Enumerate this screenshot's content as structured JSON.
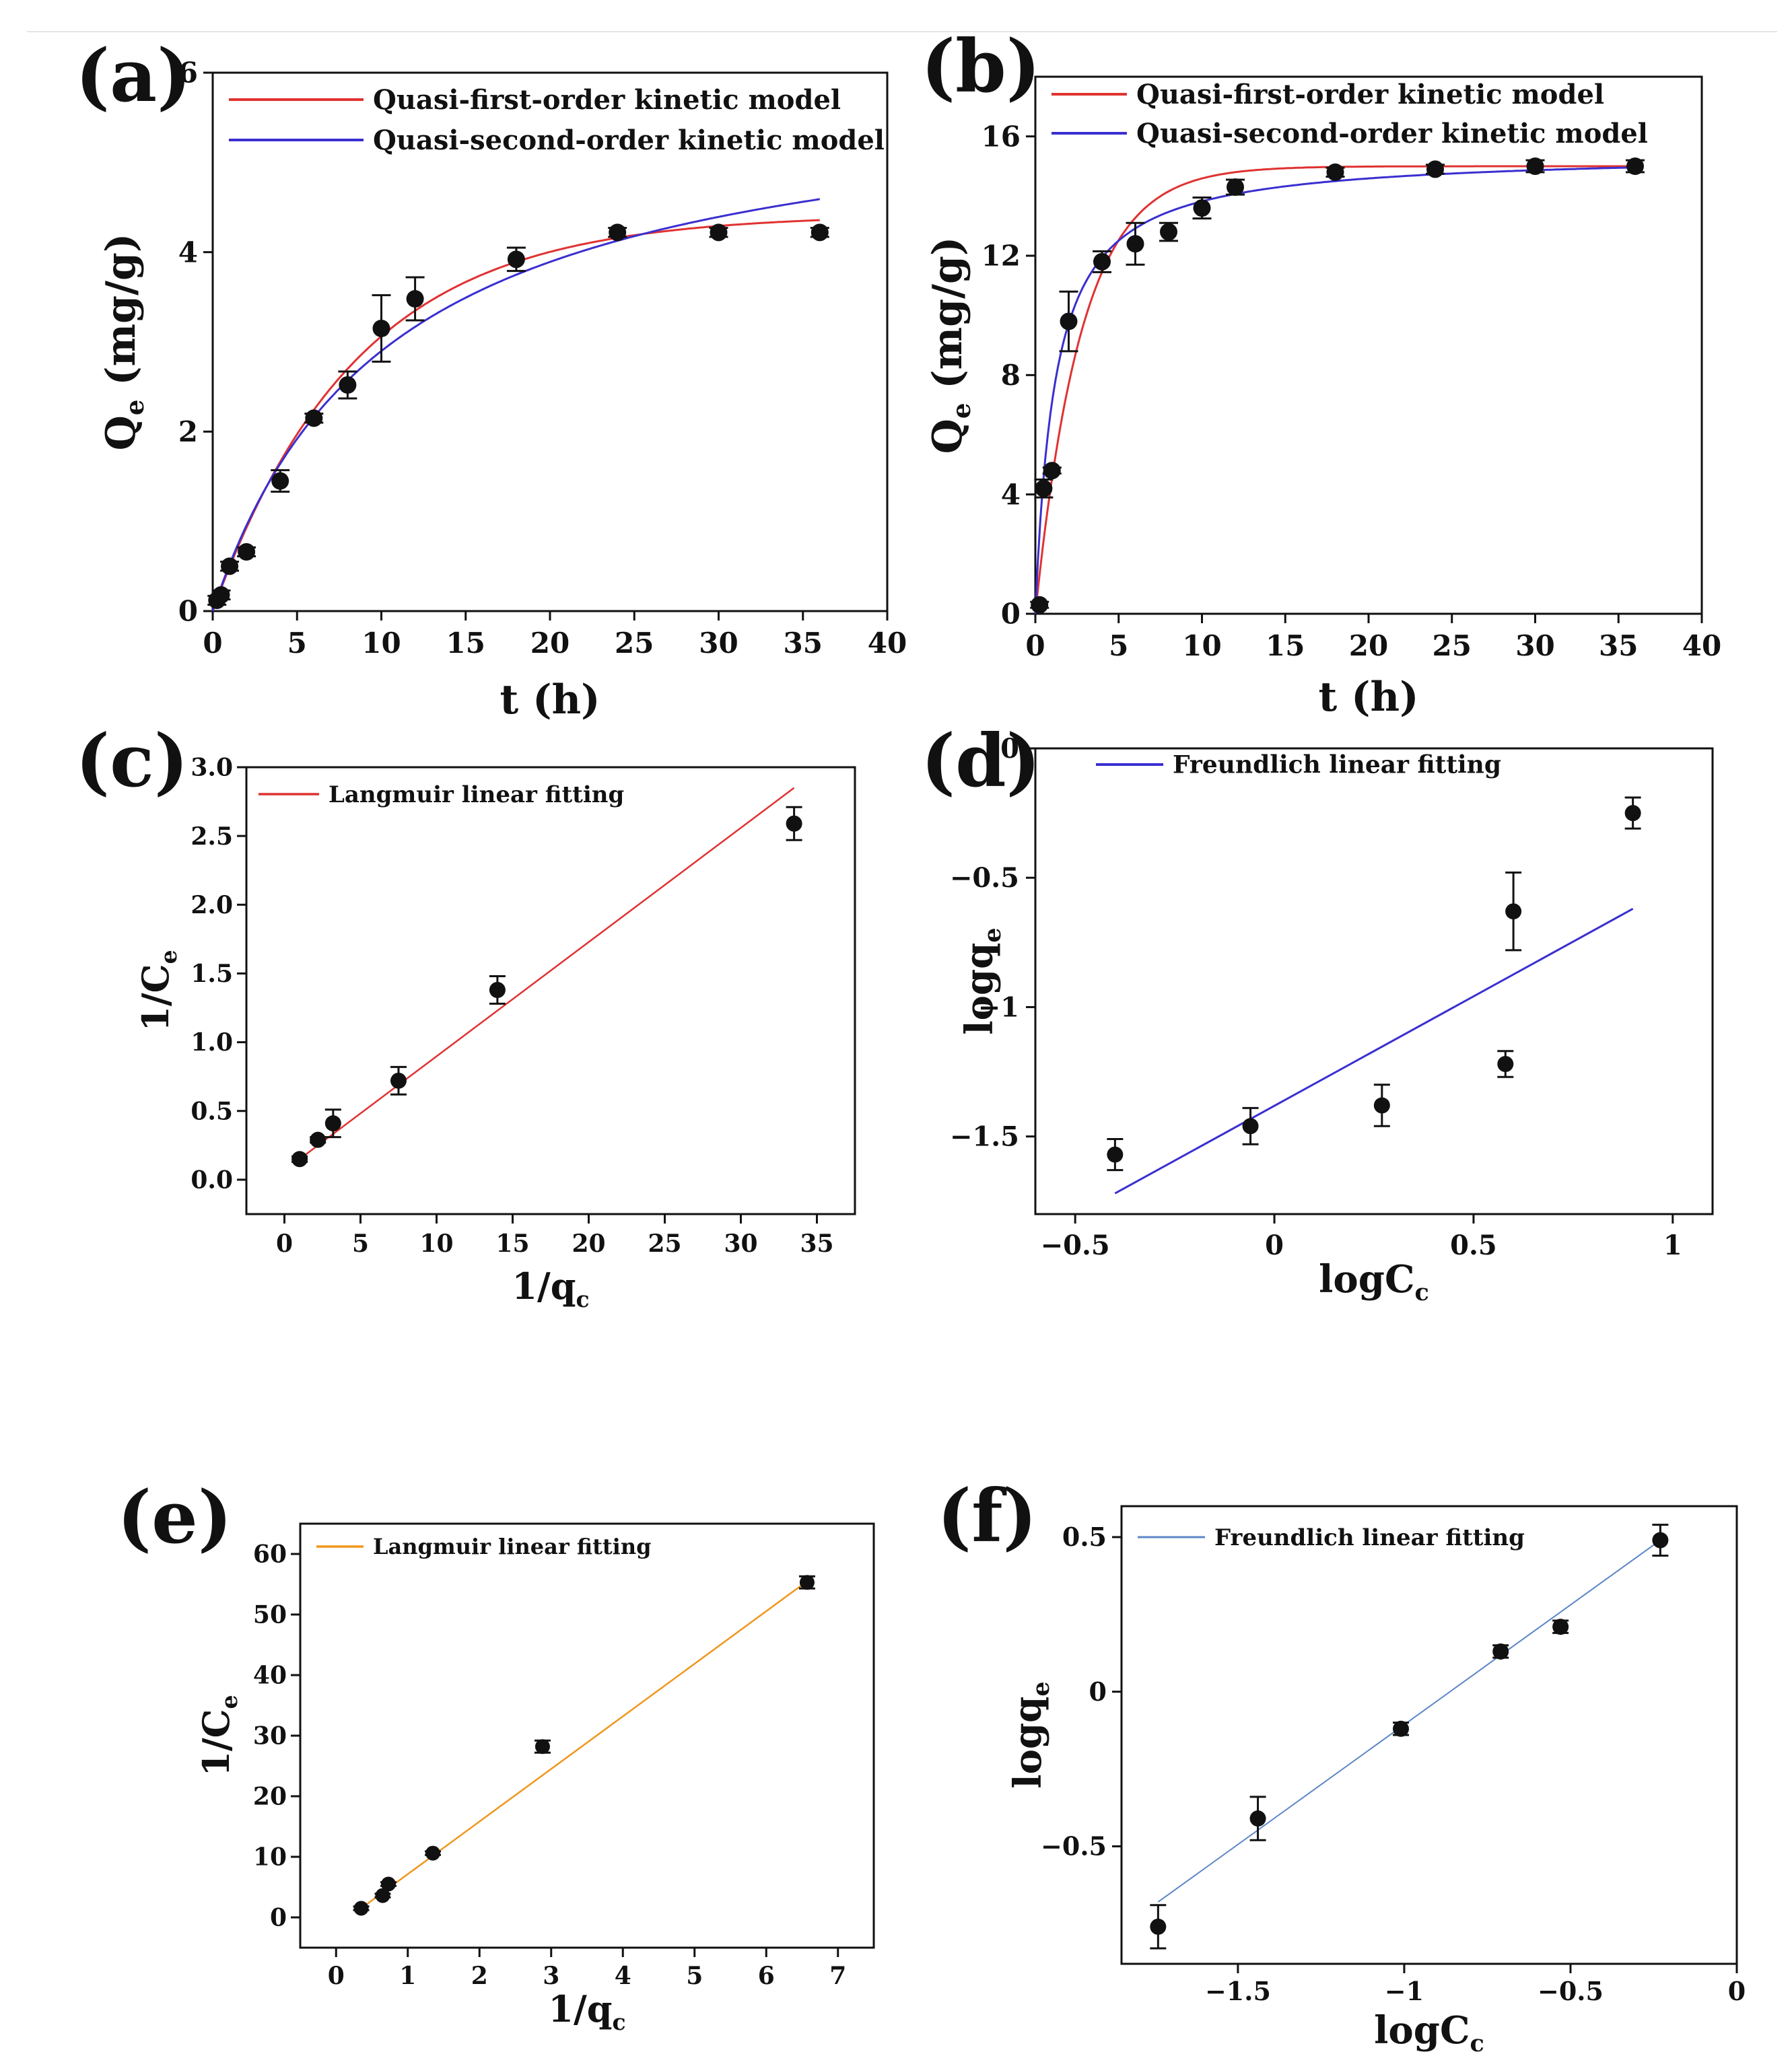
{
  "chart_data": [
    {
      "id": "a",
      "panel_label": "(a)",
      "type": "scatter",
      "xlabel": "t (h)",
      "ylabel": "Qe (mg/g)",
      "ylabel_main": "Q",
      "ylabel_sub": "e",
      "ylabel_tail": " (mg/g)",
      "xlim": [
        0,
        40
      ],
      "ylim": [
        0,
        6
      ],
      "xticks": [
        0,
        5,
        10,
        15,
        20,
        25,
        30,
        35,
        40
      ],
      "yticks": [
        0,
        2,
        4,
        6
      ],
      "x": [
        0.25,
        0.5,
        1,
        2,
        4,
        6,
        8,
        10,
        12,
        18,
        24,
        30,
        36
      ],
      "y": [
        0.12,
        0.18,
        0.5,
        0.66,
        1.45,
        2.15,
        2.52,
        3.15,
        3.48,
        3.92,
        4.22,
        4.22,
        4.22
      ],
      "err": [
        0.05,
        0.05,
        0.05,
        0.05,
        0.12,
        0.05,
        0.15,
        0.37,
        0.24,
        0.13,
        0.05,
        0.05,
        0.05
      ],
      "series": [
        {
          "name": "Quasi-first-order kinetic model",
          "model": "pfo",
          "qe": 4.42,
          "k": 0.118,
          "color": "#e03232"
        },
        {
          "name": "Quasi-second-order kinetic model",
          "model": "pso",
          "qe": 5.92,
          "k": 0.0162,
          "color": "#3a2fd0"
        }
      ],
      "legend_position": "top-left"
    },
    {
      "id": "b",
      "panel_label": "(b)",
      "type": "scatter",
      "xlabel": "t (h)",
      "ylabel": "Qe (mg/g)",
      "ylabel_main": "Q",
      "ylabel_sub": "e",
      "ylabel_tail": " (mg/g)",
      "xlim": [
        0,
        40
      ],
      "ylim": [
        0,
        18
      ],
      "xticks": [
        0,
        5,
        10,
        15,
        20,
        25,
        30,
        35,
        40
      ],
      "yticks": [
        0,
        4,
        8,
        12,
        16
      ],
      "x": [
        0.25,
        0.5,
        1,
        2,
        4,
        6,
        8,
        10,
        12,
        18,
        24,
        30,
        36
      ],
      "y": [
        0.3,
        4.2,
        4.8,
        9.8,
        11.8,
        12.4,
        12.8,
        13.6,
        14.3,
        14.8,
        14.9,
        15.0,
        15.0
      ],
      "err": [
        0.1,
        0.3,
        0.1,
        1.0,
        0.35,
        0.7,
        0.3,
        0.35,
        0.25,
        0.15,
        0.15,
        0.2,
        0.2
      ],
      "series": [
        {
          "name": "Quasi-first-order kinetic model",
          "model": "pfo",
          "qe": 15.0,
          "k": 0.36,
          "color": "#e03232"
        },
        {
          "name": "Quasi-second-order kinetic model",
          "model": "pso",
          "qe": 15.45,
          "k": 0.055,
          "color": "#3a2fd0"
        }
      ],
      "legend_position": "top-left"
    },
    {
      "id": "c",
      "panel_label": "(c)",
      "type": "scatter",
      "xlabel": "1/qc",
      "xlabel_main": "1/q",
      "xlabel_sub": "c",
      "ylabel": "1/Ce",
      "ylabel_main": "1/C",
      "ylabel_sub": "e",
      "ylabel_tail": "",
      "xlim": [
        -2.5,
        37.5
      ],
      "ylim": [
        -0.25,
        3.0
      ],
      "xticks": [
        0,
        5,
        10,
        15,
        20,
        25,
        30,
        35
      ],
      "xtick_labels": [
        "0",
        "5",
        "10",
        "15",
        "20",
        "25",
        "30",
        "35"
      ],
      "yticks": [
        0,
        0.5,
        1.0,
        1.5,
        2.0,
        2.5,
        3.0
      ],
      "ytick_labels": [
        "0.0",
        "0.5",
        "1.0",
        "1.5",
        "2.0",
        "2.5",
        "3.0"
      ],
      "x": [
        1.0,
        2.2,
        3.2,
        7.5,
        14.0,
        33.5
      ],
      "y": [
        0.15,
        0.29,
        0.41,
        0.72,
        1.38,
        2.59
      ],
      "err": [
        0.02,
        0.02,
        0.1,
        0.1,
        0.1,
        0.12
      ],
      "series": [
        {
          "name": "Langmuir linear fitting",
          "model": "line",
          "x": [
            1.0,
            33.5
          ],
          "y": [
            0.15,
            2.85
          ],
          "color": "#e03232"
        }
      ],
      "legend_position": "top-left"
    },
    {
      "id": "d",
      "panel_label": "(d)",
      "type": "scatter",
      "xlabel": "logCc",
      "xlabel_main": "logC",
      "xlabel_sub": "c",
      "ylabel": "logqe",
      "ylabel_main": "logq",
      "ylabel_sub": "e",
      "ylabel_tail": "",
      "xlim": [
        -0.6,
        1.1
      ],
      "ylim": [
        -1.8,
        0.0
      ],
      "xticks": [
        -0.5,
        0,
        0.5,
        1
      ],
      "xtick_labels": [
        "−0.5",
        "0",
        "0.5",
        "1"
      ],
      "yticks": [
        -1.5,
        -1,
        -0.5,
        0
      ],
      "ytick_labels": [
        "−1.5",
        "−1",
        "−0.5",
        "0"
      ],
      "x": [
        -0.4,
        -0.06,
        0.27,
        0.58,
        0.6,
        0.9
      ],
      "y": [
        -1.57,
        -1.46,
        -1.38,
        -1.22,
        -0.63,
        -0.25
      ],
      "err": [
        0.06,
        0.07,
        0.08,
        0.05,
        0.15,
        0.06
      ],
      "series": [
        {
          "name": "Freundlich linear fitting",
          "model": "line",
          "x": [
            -0.4,
            0.9
          ],
          "y": [
            -1.72,
            -0.62
          ],
          "color": "#3a2fd0"
        }
      ],
      "legend_position": "top-left"
    },
    {
      "id": "e",
      "panel_label": "(e)",
      "type": "scatter",
      "xlabel": "1/qc",
      "xlabel_main": "1/q",
      "xlabel_sub": "c",
      "ylabel": "1/Ce",
      "ylabel_main": "1/C",
      "ylabel_sub": "e",
      "ylabel_tail": "",
      "xlim": [
        -0.5,
        7.5
      ],
      "ylim": [
        -5,
        65
      ],
      "xticks": [
        0,
        1,
        2,
        3,
        4,
        5,
        6,
        7
      ],
      "xtick_labels": [
        "0",
        "1",
        "2",
        "3",
        "4",
        "5",
        "6",
        "7"
      ],
      "yticks": [
        0,
        10,
        20,
        30,
        40,
        50,
        60
      ],
      "ytick_labels": [
        "0",
        "10",
        "20",
        "30",
        "40",
        "50",
        "60"
      ],
      "x": [
        0.35,
        0.65,
        0.73,
        1.35,
        2.88,
        6.57
      ],
      "y": [
        1.5,
        3.6,
        5.5,
        10.6,
        28.2,
        55.3
      ],
      "err": [
        0.3,
        0.3,
        0.3,
        0.3,
        1.0,
        1.0
      ],
      "series": [
        {
          "name": "Langmuir linear fitting",
          "model": "line",
          "x": [
            0.35,
            6.57
          ],
          "y": [
            1.5,
            55.5
          ],
          "color": "#f0961e"
        }
      ],
      "legend_position": "top-left"
    },
    {
      "id": "f",
      "panel_label": "(f)",
      "type": "scatter",
      "xlabel": "logCc",
      "xlabel_main": "logC",
      "xlabel_sub": "c",
      "ylabel": "logqe",
      "ylabel_main": "logq",
      "ylabel_sub": "e",
      "ylabel_tail": "",
      "xlim": [
        -1.85,
        0.0
      ],
      "ylim": [
        -0.88,
        0.6
      ],
      "xticks": [
        -1.5,
        -1,
        -0.5,
        0
      ],
      "xtick_labels": [
        "−1.5",
        "−1",
        "−0.5",
        "0"
      ],
      "yticks": [
        -0.5,
        0,
        0.5
      ],
      "ytick_labels": [
        "−0.5",
        "0",
        "0.5"
      ],
      "x": [
        -1.74,
        -1.44,
        -1.01,
        -0.71,
        -0.53,
        -0.23
      ],
      "y": [
        -0.76,
        -0.41,
        -0.12,
        0.13,
        0.21,
        0.49
      ],
      "err": [
        0.07,
        0.07,
        0.02,
        0.02,
        0.02,
        0.05
      ],
      "series": [
        {
          "name": "Freundlich linear fitting",
          "model": "line",
          "x": [
            -1.74,
            -0.23
          ],
          "y": [
            -0.68,
            0.49
          ],
          "color": "#5b86c7"
        }
      ],
      "legend_position": "top-left"
    }
  ]
}
